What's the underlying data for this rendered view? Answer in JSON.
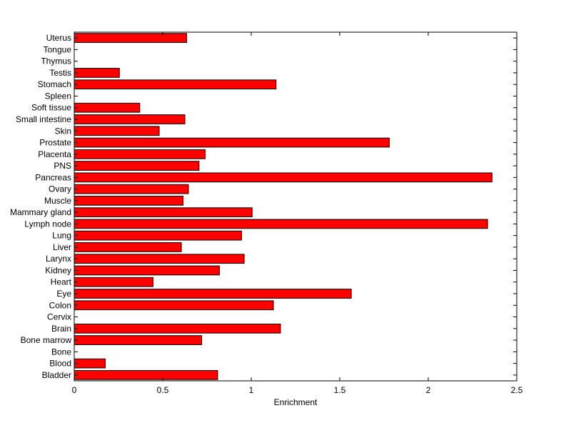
{
  "chart_data": {
    "type": "bar",
    "orientation": "horizontal",
    "categories": [
      "Bladder",
      "Blood",
      "Bone",
      "Bone marrow",
      "Brain",
      "Cervix",
      "Colon",
      "Eye",
      "Heart",
      "Kidney",
      "Larynx",
      "Liver",
      "Lung",
      "Lymph node",
      "Mammary gland",
      "Muscle",
      "Ovary",
      "Pancreas",
      "PNS",
      "Placenta",
      "Prostate",
      "Skin",
      "Small intestine",
      "Soft tissue",
      "Spleen",
      "Stomach",
      "Testis",
      "Thymus",
      "Tongue",
      "Uterus"
    ],
    "values": [
      0.81,
      0.175,
      0,
      0.72,
      1.165,
      0,
      1.125,
      1.565,
      0.445,
      0.82,
      0.96,
      0.605,
      0.945,
      2.335,
      1.005,
      0.615,
      0.645,
      2.36,
      0.705,
      0.74,
      1.78,
      0.48,
      0.625,
      0.37,
      0,
      1.14,
      0.255,
      0,
      0,
      0.635
    ],
    "title": "",
    "xlabel": "Enrichment",
    "ylabel": "",
    "xlim": [
      0,
      2.5
    ],
    "xticks": [
      0,
      0.5,
      1,
      1.5,
      2,
      2.5
    ],
    "xtick_labels": [
      "0",
      "0.5",
      "1",
      "1.5",
      "2",
      "2.5"
    ],
    "grid": false,
    "bar_color": "#ff0000",
    "edge_color": "#000000"
  }
}
